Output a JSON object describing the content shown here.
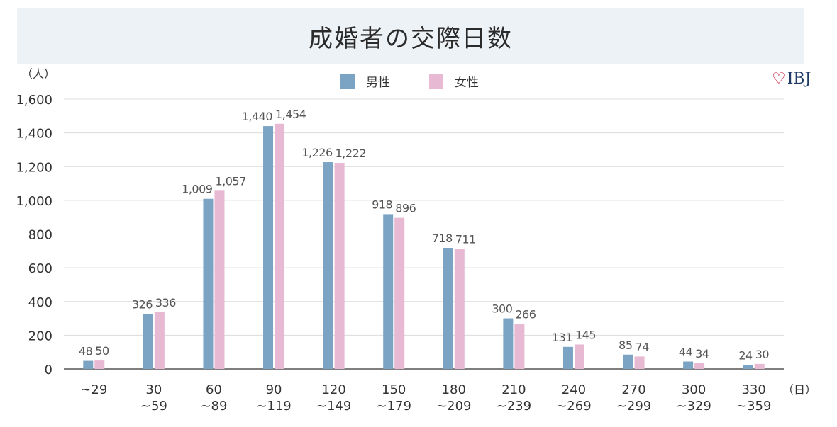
{
  "chart_data": {
    "type": "bar",
    "title": "成婚者の交際日数",
    "y_unit_label": "（人）",
    "x_unit_label": "（日）",
    "ylim": [
      0,
      1600
    ],
    "yticks": [
      0,
      200,
      400,
      600,
      800,
      1000,
      1200,
      1400,
      1600
    ],
    "ytick_labels": [
      "0",
      "200",
      "400",
      "600",
      "800",
      "1,000",
      "1,200",
      "1,400",
      "1,600"
    ],
    "grid": true,
    "legend_position": "top-center",
    "categories": [
      [
        "~29"
      ],
      [
        "30",
        "~59"
      ],
      [
        "60",
        "~89"
      ],
      [
        "90",
        "~119"
      ],
      [
        "120",
        "~149"
      ],
      [
        "150",
        "~179"
      ],
      [
        "180",
        "~209"
      ],
      [
        "210",
        "~239"
      ],
      [
        "240",
        "~269"
      ],
      [
        "270",
        "~299"
      ],
      [
        "300",
        "~329"
      ],
      [
        "330",
        "~359"
      ]
    ],
    "series": [
      {
        "name": "男性",
        "color": "#7aa3c4",
        "values": [
          48,
          326,
          1009,
          1440,
          1226,
          918,
          718,
          300,
          131,
          85,
          44,
          24
        ],
        "labels": [
          "48",
          "326",
          "1,009",
          "1,440",
          "1,226",
          "918",
          "718",
          "300",
          "131",
          "85",
          "44",
          "24"
        ]
      },
      {
        "name": "女性",
        "color": "#e8b9d3",
        "values": [
          50,
          336,
          1057,
          1454,
          1222,
          896,
          711,
          266,
          145,
          74,
          34,
          30
        ],
        "labels": [
          "50",
          "336",
          "1,057",
          "1,454",
          "1,222",
          "896",
          "711",
          "266",
          "145",
          "74",
          "34",
          "30"
        ]
      }
    ]
  },
  "brand": {
    "text": "IBJ",
    "icon": "heart-icon",
    "color": "#c8102e"
  }
}
